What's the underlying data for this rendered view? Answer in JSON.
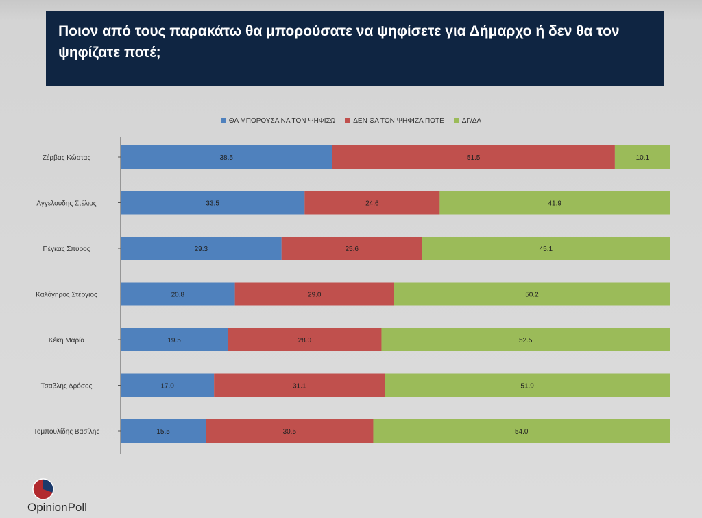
{
  "title": "Ποιον από τους παρακάτω θα μπορούσατε να ψηφίσετε για Δήμαρχο ή  δεν θα τον ψηφίζατε ποτέ;",
  "logo": {
    "part1": "Opinion",
    "part2": "Poll"
  },
  "chart_data": {
    "type": "bar",
    "orientation": "horizontal",
    "stacked": true,
    "categories": [
      "Ζέρβας Κώστας",
      "Αγγελούδης Στέλιος",
      "Πέγκας Σπύρος",
      "Καλόγηρος Στέργιος",
      "Κέκη Μαρία",
      "Τσαβλής Δρόσος",
      "Τομπουλίδης Βασίλης"
    ],
    "series": [
      {
        "name": "ΘΑ ΜΠΟΡΟΥΣΑ ΝΑ ΤΟΝ ΨΗΦΙΣΩ",
        "color": "#4f81bd",
        "values": [
          38.5,
          33.5,
          29.3,
          20.8,
          19.5,
          17.0,
          15.5
        ]
      },
      {
        "name": "ΔΕΝ ΘΑ ΤΟΝ ΨΗΦΙΖΑ ΠΟΤΕ",
        "color": "#c0504d",
        "values": [
          51.5,
          24.6,
          25.6,
          29.0,
          28.0,
          31.1,
          30.5
        ]
      },
      {
        "name": "ΔΓ/ΔΑ",
        "color": "#9bbb59",
        "values": [
          10.1,
          41.9,
          45.1,
          50.2,
          52.5,
          51.9,
          54.0
        ]
      }
    ],
    "xlim": [
      0,
      100
    ],
    "legend": "top-center",
    "grid": false
  }
}
